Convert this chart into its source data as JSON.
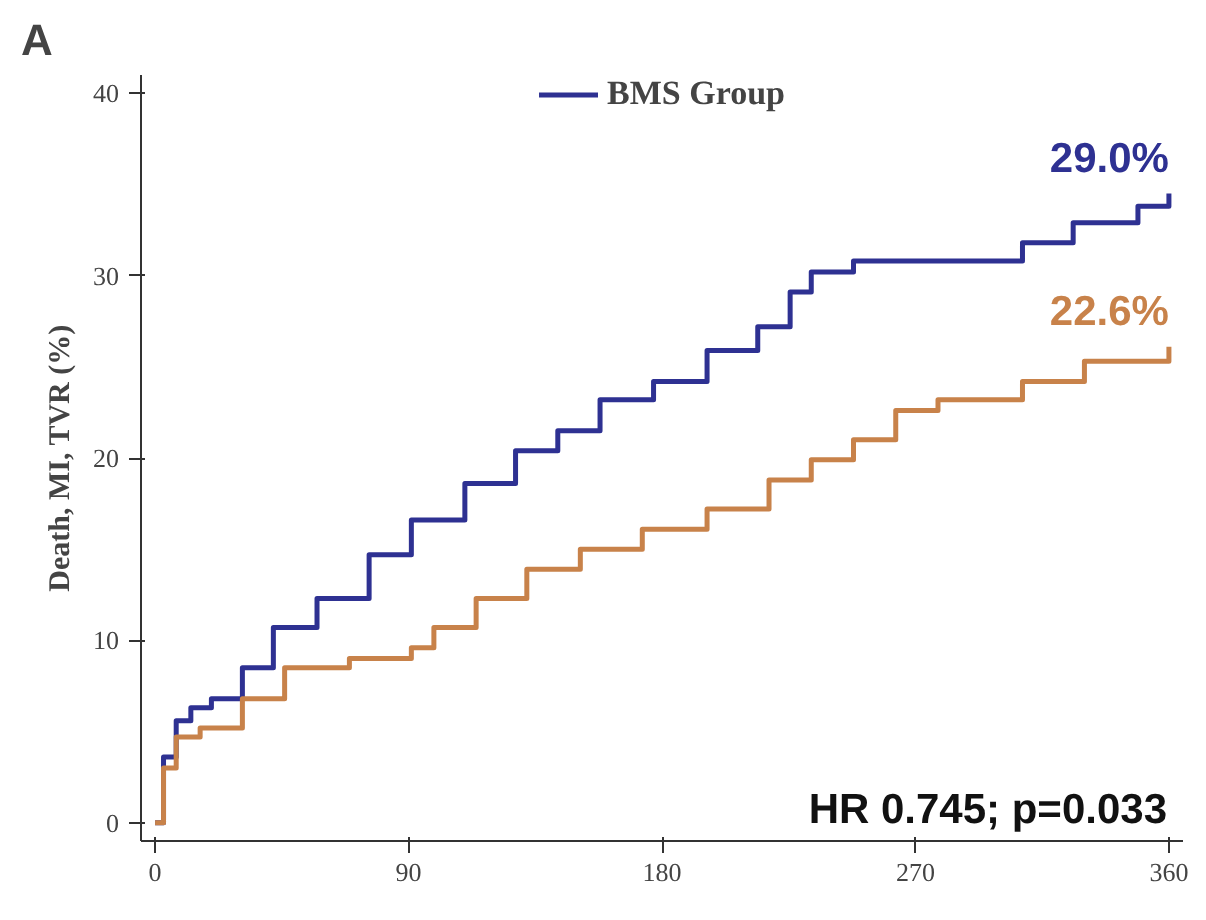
{
  "chart_data": {
    "type": "step",
    "title": "A",
    "ylabel": "Death, MI, TVR (%)",
    "xlim": [
      -5,
      365
    ],
    "ylim": [
      -1,
      41
    ],
    "xticks": [
      0,
      90,
      180,
      270,
      360
    ],
    "yticks": [
      0,
      10,
      20,
      30,
      40
    ],
    "grid": false,
    "legend": "top",
    "marker": "none",
    "line_style": "solid",
    "series": [
      {
        "name": "BMS Group",
        "color": "#2e3192",
        "x": [
          0,
          3,
          7.5,
          12.7,
          20,
          31,
          42,
          57.5,
          76,
          91,
          110,
          128,
          143,
          158,
          177,
          196,
          214,
          225.5,
          233,
          248,
          293,
          308,
          326,
          349,
          360
        ],
        "values": [
          0,
          3.6,
          5.6,
          6.3,
          6.8,
          8.5,
          10.7,
          12.3,
          14.7,
          16.6,
          18.6,
          20.4,
          21.5,
          23.2,
          24.2,
          25.9,
          27.2,
          29.1,
          30.2,
          30.8,
          30.8,
          31.8,
          32.9,
          33.8,
          34.5
        ]
      },
      {
        "color": "#c8824a",
        "x": [
          0,
          3,
          7.5,
          16,
          31,
          46,
          69,
          91,
          99,
          114,
          132,
          151,
          173,
          196,
          218,
          233,
          248,
          263,
          278,
          308,
          330,
          360
        ],
        "values": [
          0,
          3.0,
          4.7,
          5.2,
          6.8,
          8.5,
          9.0,
          9.6,
          10.7,
          12.3,
          13.9,
          15.0,
          16.1,
          17.2,
          18.8,
          19.9,
          21.0,
          22.6,
          23.2,
          24.2,
          25.3,
          26.1
        ]
      }
    ],
    "annotations": [
      {
        "text": "29.0%",
        "x": 360,
        "y": 34.5
      },
      {
        "text": "22.6%",
        "x": 360,
        "y": 26.1
      },
      "HR 0.745; p=0.033"
    ]
  }
}
